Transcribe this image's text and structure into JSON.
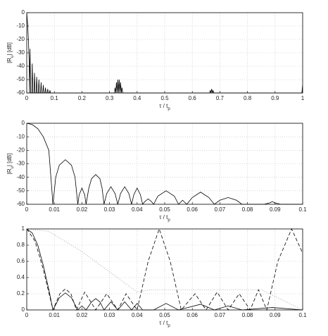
{
  "chart_data": [
    {
      "type": "line",
      "xlim": [
        0,
        1
      ],
      "ylim": [
        -60,
        0
      ],
      "xticks": [
        0,
        0.1,
        0.2,
        0.3,
        0.4,
        0.5,
        0.6,
        0.7,
        0.8,
        0.9,
        1
      ],
      "yticks": [
        0,
        -10,
        -20,
        -30,
        -40,
        -50,
        -60
      ],
      "grid": true,
      "xlabel": [
        "τ / t",
        "p"
      ],
      "ylabel": [
        "|R",
        "u",
        "| [dB]"
      ],
      "series": [
        {
          "color": "#000000",
          "linestyle": "solid",
          "x": [
            0,
            0.003,
            0.006,
            0.009,
            0.01,
            0.012,
            0.014,
            0.018,
            0.02,
            0.022,
            0.026,
            0.028,
            0.03,
            0.034,
            0.036,
            0.038,
            0.042,
            0.044,
            0.046,
            0.05,
            0.052,
            0.054,
            0.058,
            0.06,
            0.062,
            0.066,
            0.068,
            0.07,
            0.074,
            0.076,
            0.078,
            0.082,
            0.084,
            0.086,
            0.318,
            0.32,
            0.323,
            0.325,
            0.328,
            0.33,
            0.333,
            0.335,
            0.338,
            0.34,
            0.343,
            0.345,
            0.348,
            0.663,
            0.665,
            0.668,
            0.67,
            0.673,
            0.675,
            0.678,
            0.997,
            1
          ],
          "values": [
            0,
            -8,
            -20,
            -38,
            -60,
            -27,
            -60,
            -60,
            -38,
            -60,
            -60,
            -45,
            -60,
            -60,
            -48,
            -60,
            -60,
            -50,
            -60,
            -60,
            -52,
            -60,
            -60,
            -54,
            -60,
            -60,
            -56,
            -60,
            -60,
            -57,
            -60,
            -60,
            -58,
            -60,
            -60,
            -56,
            -60,
            -52,
            -60,
            -50,
            -60,
            -50,
            -60,
            -52,
            -60,
            -56,
            -60,
            -60,
            -58,
            -60,
            -57,
            -60,
            -58,
            -60,
            -60,
            -54
          ]
        }
      ]
    },
    {
      "type": "line",
      "xlim": [
        0,
        0.1
      ],
      "ylim": [
        -60,
        0
      ],
      "xticks": [
        0,
        0.01,
        0.02,
        0.03,
        0.04,
        0.05,
        0.06,
        0.07,
        0.08,
        0.09,
        0.1
      ],
      "yticks": [
        0,
        -10,
        -20,
        -30,
        -40,
        -50,
        -60
      ],
      "grid": true,
      "xlabel": [
        "τ / t",
        "p"
      ],
      "ylabel": [
        "|R",
        "u",
        "| [dB]"
      ],
      "series": [
        {
          "color": "#000000",
          "linestyle": "solid",
          "x": [
            0,
            0.002,
            0.004,
            0.006,
            0.008,
            0.0095,
            0.0105,
            0.0118,
            0.014,
            0.0162,
            0.0175,
            0.0185,
            0.019,
            0.02,
            0.021,
            0.0215,
            0.0225,
            0.0235,
            0.025,
            0.0265,
            0.0273,
            0.028,
            0.029,
            0.0305,
            0.032,
            0.033,
            0.034,
            0.0355,
            0.037,
            0.038,
            0.0388,
            0.04,
            0.0412,
            0.042,
            0.0428,
            0.044,
            0.0452,
            0.046,
            0.0475,
            0.0505,
            0.0535,
            0.055,
            0.0565,
            0.058,
            0.06,
            0.063,
            0.066,
            0.068,
            0.07,
            0.073,
            0.076,
            0.078,
            0.086,
            0.088,
            0.089,
            0.09,
            0.092,
            0.1
          ],
          "values": [
            0,
            -1,
            -4,
            -10,
            -20,
            -60,
            -40,
            -31,
            -27,
            -31,
            -40,
            -60,
            -53,
            -48,
            -53,
            -60,
            -48,
            -41,
            -38,
            -41,
            -48,
            -60,
            -52,
            -47,
            -52,
            -60,
            -52,
            -47,
            -52,
            -60,
            -53,
            -48,
            -53,
            -60,
            -58,
            -56,
            -58,
            -60,
            -54,
            -50,
            -54,
            -60,
            -57,
            -60,
            -55,
            -51,
            -55,
            -60,
            -57,
            -55,
            -57,
            -60,
            -60,
            -59,
            -58,
            -59,
            -60,
            -60
          ]
        }
      ]
    },
    {
      "type": "line",
      "xlim": [
        0,
        0.1
      ],
      "ylim": [
        0,
        1
      ],
      "xticks": [
        0,
        0.01,
        0.02,
        0.03,
        0.04,
        0.05,
        0.06,
        0.07,
        0.08,
        0.09,
        0.1
      ],
      "yticks": [
        0,
        0.2,
        0.4,
        0.6,
        0.8,
        1
      ],
      "grid": true,
      "xlabel": [
        "τ / t",
        "p"
      ],
      "series": [
        {
          "color": "#000000",
          "linestyle": "solid",
          "x": [
            0,
            0.002,
            0.004,
            0.006,
            0.008,
            0.0095,
            0.0118,
            0.014,
            0.0162,
            0.0185,
            0.02,
            0.0215,
            0.0235,
            0.025,
            0.0265,
            0.028,
            0.0305,
            0.033,
            0.0355,
            0.038,
            0.04,
            0.042,
            0.046,
            0.0505,
            0.055,
            0.063,
            0.068,
            0.073,
            0.078,
            0.089,
            0.1
          ],
          "values": [
            1,
            0.95,
            0.8,
            0.55,
            0.25,
            0,
            0.15,
            0.21,
            0.15,
            0,
            0.05,
            0,
            0.1,
            0.14,
            0.1,
            0,
            0.1,
            0,
            0.1,
            0,
            0.08,
            0,
            0,
            0.08,
            0,
            0.07,
            0,
            0.05,
            0,
            0.03,
            0
          ]
        },
        {
          "color": "#000000",
          "linestyle": "dashed",
          "x": [
            0,
            0.003,
            0.006,
            0.0095,
            0.012,
            0.014,
            0.016,
            0.018,
            0.021,
            0.025,
            0.029,
            0.033,
            0.036,
            0.04,
            0.044,
            0.048,
            0.052,
            0.056,
            0.061,
            0.065,
            0.069,
            0.073,
            0.077,
            0.081,
            0.084,
            0.087,
            0.091,
            0.096,
            0.1
          ],
          "values": [
            1,
            0.85,
            0.5,
            0,
            0.2,
            0.26,
            0.2,
            0,
            0.22,
            0,
            0.2,
            0,
            0.2,
            0,
            0.6,
            1,
            0.6,
            0,
            0.2,
            0,
            0.22,
            0,
            0.2,
            0,
            0.25,
            0,
            0.6,
            1,
            0.7
          ]
        },
        {
          "color": "#999999",
          "linestyle": "dotted",
          "x": [
            0,
            0.008,
            0.02,
            0.03,
            0.04,
            0.045,
            0.085,
            0.1
          ],
          "values": [
            1,
            0.97,
            0.72,
            0.47,
            0.22,
            0.25,
            0.25,
            0
          ]
        }
      ]
    }
  ]
}
